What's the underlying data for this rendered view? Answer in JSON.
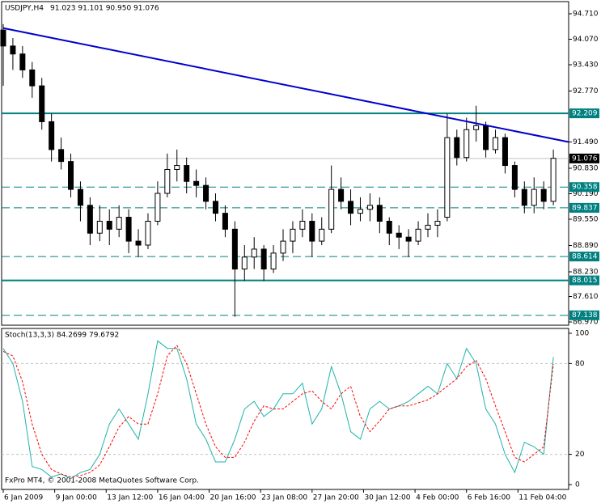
{
  "chart_data": [
    {
      "type": "candlestick",
      "title": "USDJPY,H4",
      "subtitle": "91.023 91.101 90.950 91.076",
      "color": "#000000",
      "x": [
        0,
        3,
        6,
        9,
        12,
        15,
        18,
        21,
        24,
        27,
        30,
        33,
        36,
        39,
        42,
        45,
        48,
        51,
        54,
        57,
        60,
        63,
        66,
        69,
        72,
        75,
        78,
        81,
        84,
        87,
        90,
        93,
        96,
        99,
        102,
        105,
        108,
        111,
        114,
        117,
        120,
        123,
        126,
        129,
        132,
        135,
        138,
        141,
        144,
        147,
        150,
        153,
        156,
        159,
        162,
        165,
        168,
        171
      ],
      "open": [
        94.3,
        93.9,
        93.7,
        93.3,
        92.9,
        92.0,
        91.3,
        91.0,
        90.3,
        89.9,
        89.2,
        89.5,
        89.3,
        89.6,
        89.0,
        88.9,
        89.5,
        90.2,
        90.8,
        90.9,
        90.5,
        90.4,
        90.0,
        89.7,
        89.3,
        88.3,
        88.6,
        88.8,
        88.3,
        88.7,
        89.0,
        89.3,
        89.5,
        89.0,
        89.3,
        90.3,
        90.0,
        89.7,
        89.8,
        89.9,
        89.5,
        89.2,
        89.1,
        89.0,
        89.3,
        89.4,
        89.6,
        91.6,
        91.1,
        91.8,
        91.9,
        91.3,
        91.6,
        90.9,
        90.3,
        89.9,
        90.3,
        90.0
      ],
      "high": [
        94.45,
        94.1,
        93.9,
        93.5,
        93.1,
        92.2,
        91.6,
        91.2,
        90.5,
        90.1,
        89.9,
        89.8,
        89.9,
        89.8,
        89.3,
        89.7,
        90.5,
        91.2,
        91.3,
        91.1,
        90.8,
        90.6,
        90.2,
        89.9,
        89.5,
        88.9,
        89.1,
        88.9,
        88.9,
        89.3,
        89.5,
        89.8,
        89.7,
        89.6,
        90.9,
        90.6,
        90.3,
        90.1,
        90.2,
        90.1,
        89.6,
        89.4,
        89.3,
        89.5,
        89.7,
        89.8,
        92.2,
        91.8,
        92.1,
        92.4,
        92.0,
        91.8,
        91.7,
        91.0,
        90.5,
        90.6,
        90.5,
        91.3
      ],
      "low": [
        92.9,
        93.3,
        93.1,
        92.6,
        91.8,
        91.0,
        90.8,
        90.1,
        89.5,
        88.9,
        89.0,
        88.9,
        89.1,
        88.7,
        88.6,
        88.8,
        89.4,
        90.1,
        90.5,
        90.2,
        90.1,
        89.8,
        89.5,
        89.1,
        87.1,
        88.0,
        88.3,
        88.0,
        88.2,
        88.5,
        88.7,
        89.1,
        88.6,
        88.9,
        89.2,
        89.8,
        89.4,
        89.5,
        89.5,
        89.2,
        88.9,
        88.8,
        88.6,
        88.9,
        89.1,
        89.1,
        89.5,
        90.9,
        91.0,
        91.5,
        91.1,
        91.2,
        90.7,
        90.1,
        89.7,
        89.7,
        89.8,
        89.9
      ],
      "close": [
        93.9,
        93.7,
        93.3,
        92.9,
        92.0,
        91.3,
        91.0,
        90.3,
        89.9,
        89.2,
        89.5,
        89.3,
        89.6,
        89.0,
        88.9,
        89.5,
        90.2,
        90.8,
        90.9,
        90.5,
        90.4,
        90.0,
        89.7,
        89.3,
        88.3,
        88.6,
        88.8,
        88.3,
        88.7,
        89.0,
        89.3,
        89.5,
        89.0,
        89.3,
        90.3,
        90.0,
        89.7,
        89.8,
        89.9,
        89.5,
        89.2,
        89.1,
        89.0,
        89.3,
        89.4,
        89.5,
        91.6,
        91.1,
        91.8,
        91.9,
        91.3,
        91.6,
        90.9,
        90.3,
        89.9,
        90.3,
        90.0,
        91.08
      ],
      "xlim": [
        -0.5,
        175.75
      ],
      "ylim": [
        86.889,
        95.015
      ],
      "yticks": [
        {
          "value": 94.71,
          "label": "94.710"
        },
        {
          "value": 94.07,
          "label": "94.070"
        },
        {
          "value": 93.43,
          "label": "93.430"
        },
        {
          "value": 92.77,
          "label": "92.770"
        },
        {
          "value": 91.49,
          "label": "91.490"
        },
        {
          "value": 90.83,
          "label": "90.830"
        },
        {
          "value": 90.19,
          "label": "90.190"
        },
        {
          "value": 89.55,
          "label": "89.550"
        },
        {
          "value": 88.89,
          "label": "88.890"
        },
        {
          "value": 88.23,
          "label": "88.230"
        },
        {
          "value": 87.61,
          "label": "87.610"
        },
        {
          "value": 86.97,
          "label": "86.970"
        }
      ],
      "levels": [
        {
          "value": 92.209,
          "label": "92.209",
          "style": "solid"
        },
        {
          "value": 90.358,
          "label": "90.358",
          "style": "dashed"
        },
        {
          "value": 89.837,
          "label": "89.837",
          "style": "dashed"
        },
        {
          "value": 88.614,
          "label": "88.614",
          "style": "dashed"
        },
        {
          "value": 88.015,
          "label": "88.015",
          "style": "solid"
        },
        {
          "value": 87.138,
          "label": "87.138",
          "style": "dashed"
        }
      ],
      "level_color": "#008080",
      "current_price": {
        "value": 91.076,
        "label": "91.076"
      },
      "trendline": {
        "x": [
          0,
          175.75
        ],
        "y": [
          94.35,
          91.49
        ],
        "color": "#0000cc"
      }
    },
    {
      "type": "line",
      "title": "Stoch(13,3,3) 84.2699 79.6792",
      "annotation": "FxPro MT4, © 2001-2008 MetaQuotes Software Corp.",
      "x": [
        0,
        3,
        6,
        9,
        12,
        15,
        18,
        21,
        24,
        27,
        30,
        33,
        36,
        39,
        42,
        45,
        48,
        51,
        54,
        57,
        60,
        63,
        66,
        69,
        72,
        75,
        78,
        81,
        84,
        87,
        90,
        93,
        96,
        99,
        102,
        105,
        108,
        111,
        114,
        117,
        120,
        123,
        126,
        129,
        132,
        135,
        138,
        141,
        144,
        147,
        150,
        153,
        156,
        159,
        162,
        165,
        168,
        171
      ],
      "series": [
        {
          "name": "Main",
          "color": "#20b2aa",
          "style": "solid",
          "values": [
            90,
            80,
            55,
            12,
            10,
            5,
            7,
            4,
            8,
            10,
            20,
            40,
            50,
            40,
            30,
            60,
            95,
            90,
            90,
            70,
            40,
            30,
            15,
            15,
            30,
            50,
            55,
            45,
            50,
            60,
            60,
            67,
            40,
            50,
            78,
            60,
            35,
            30,
            50,
            55,
            50,
            52,
            55,
            60,
            65,
            60,
            80,
            70,
            90,
            80,
            50,
            40,
            20,
            8,
            28,
            25,
            20,
            84.2699
          ]
        },
        {
          "name": "Signal",
          "color": "#ff0000",
          "style": "dashed",
          "values": [
            88,
            85,
            68,
            40,
            20,
            10,
            7,
            5,
            6,
            8,
            13,
            25,
            38,
            45,
            40,
            40,
            60,
            85,
            92,
            80,
            60,
            40,
            25,
            18,
            18,
            28,
            42,
            52,
            50,
            50,
            55,
            60,
            62,
            55,
            50,
            60,
            65,
            45,
            35,
            42,
            50,
            52,
            52,
            54,
            56,
            60,
            65,
            70,
            78,
            82,
            70,
            52,
            35,
            18,
            15,
            20,
            25,
            79.6792
          ]
        }
      ],
      "xlim": [
        -0.5,
        175.75
      ],
      "ylim": [
        -3.2,
        103.2
      ],
      "yticks": [
        0,
        20,
        80,
        100
      ],
      "grid_levels": [
        20,
        80
      ],
      "xticks": [
        {
          "value": 0,
          "label": "6 Jan 2009"
        },
        {
          "value": 16,
          "label": "9 Jan 00:00"
        },
        {
          "value": 32,
          "label": "13 Jan 12:00"
        },
        {
          "value": 48,
          "label": "16 Jan 04:00"
        },
        {
          "value": 64,
          "label": "20 Jan 16:00"
        },
        {
          "value": 80,
          "label": "23 Jan 08:00"
        },
        {
          "value": 96,
          "label": "27 Jan 20:00"
        },
        {
          "value": 112,
          "label": "30 Jan 12:00"
        },
        {
          "value": 128,
          "label": "4 Feb 00:00"
        },
        {
          "value": 144,
          "label": "6 Feb 16:00"
        },
        {
          "value": 160,
          "label": "11 Feb 04:00"
        }
      ]
    }
  ]
}
